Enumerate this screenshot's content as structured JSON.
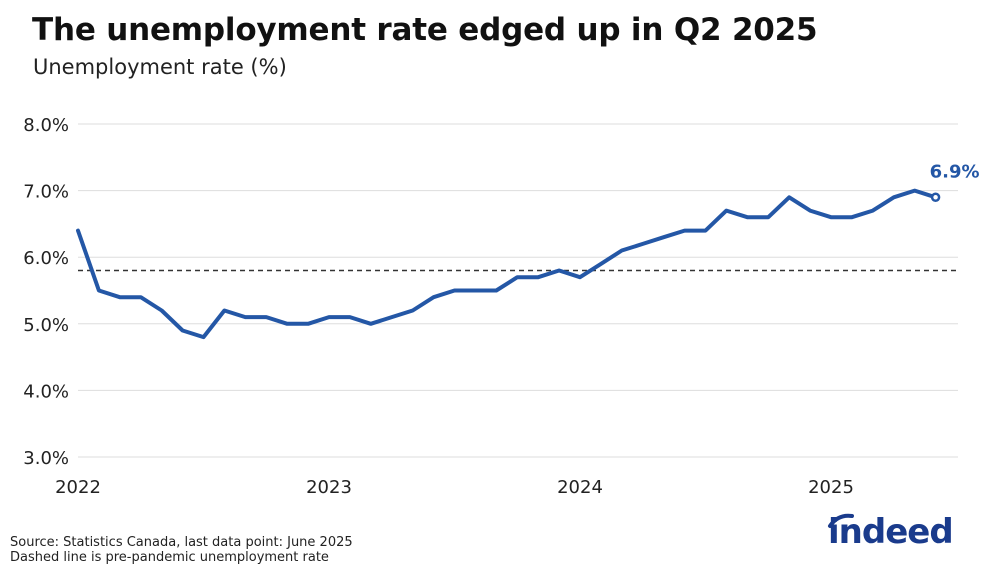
{
  "title": "The unemployment rate edged up in Q2 2025",
  "subtitle": "Unemployment rate (%)",
  "footnote": {
    "line1": "Source: Statistics Canada, last data point: June 2025",
    "line2": "Dashed line is pre-pandemic unemployment rate"
  },
  "logo": {
    "text": "indeed",
    "color": "#1a3b8c"
  },
  "colors": {
    "line": "#2457a6",
    "label": "#2457a6",
    "grid": "#dddddd",
    "reference": "#333333"
  },
  "chart_data": {
    "type": "line",
    "title": "The unemployment rate edged up in Q2 2025",
    "subtitle": "Unemployment rate (%)",
    "ylim": [
      3.0,
      8.0
    ],
    "y_ticks": [
      {
        "value": 3.0,
        "label": "3.0%"
      },
      {
        "value": 4.0,
        "label": "4.0%"
      },
      {
        "value": 5.0,
        "label": "5.0%"
      },
      {
        "value": 6.0,
        "label": "6.0%"
      },
      {
        "value": 7.0,
        "label": "7.0%"
      },
      {
        "value": 8.0,
        "label": "8.0%"
      }
    ],
    "x_ticks": [
      "2022",
      "2023",
      "2024",
      "2025"
    ],
    "reference_line": {
      "value": 5.8,
      "style": "dashed",
      "description": "Dashed line is pre-pandemic unemployment rate"
    },
    "end_label": "6.9%",
    "grid": true,
    "series": [
      {
        "x": [
          "2022-01",
          "2022-02",
          "2022-03",
          "2022-04",
          "2022-05",
          "2022-06",
          "2022-07",
          "2022-08",
          "2022-09",
          "2022-10",
          "2022-11",
          "2022-12",
          "2023-01",
          "2023-02",
          "2023-03",
          "2023-04",
          "2023-05",
          "2023-06",
          "2023-07",
          "2023-08",
          "2023-09",
          "2023-10",
          "2023-11",
          "2023-12",
          "2024-01",
          "2024-02",
          "2024-03",
          "2024-04",
          "2024-05",
          "2024-06",
          "2024-07",
          "2024-08",
          "2024-09",
          "2024-10",
          "2024-11",
          "2024-12",
          "2025-01",
          "2025-02",
          "2025-03",
          "2025-04",
          "2025-05",
          "2025-06"
        ],
        "values": [
          6.4,
          5.5,
          5.4,
          5.4,
          5.2,
          4.9,
          4.8,
          5.2,
          5.1,
          5.1,
          5.0,
          5.0,
          5.1,
          5.1,
          5.0,
          5.1,
          5.2,
          5.4,
          5.5,
          5.5,
          5.5,
          5.7,
          5.7,
          5.8,
          5.7,
          5.9,
          6.1,
          6.2,
          6.3,
          6.4,
          6.4,
          6.7,
          6.6,
          6.6,
          6.9,
          6.7,
          6.6,
          6.6,
          6.7,
          6.9,
          7.0,
          6.9
        ]
      }
    ]
  }
}
